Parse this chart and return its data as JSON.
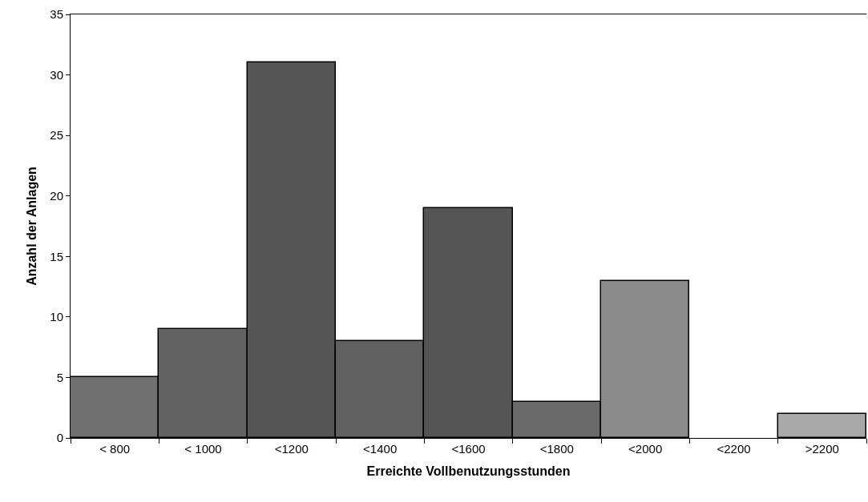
{
  "chart_data": {
    "type": "bar",
    "xlabel": "Erreichte Vollbenutzungsstunden",
    "ylabel": "Anzahl der Anlagen",
    "categories": [
      "< 800",
      "< 1000",
      "<1200",
      "<1400",
      "<1600",
      "<1800",
      "<2000",
      "<2200",
      ">2200"
    ],
    "values": [
      5,
      9,
      31,
      8,
      19,
      3,
      13,
      0,
      2
    ],
    "colors": [
      "#707070",
      "#626262",
      "#555555",
      "#606060",
      "#545454",
      "#6a6a6a",
      "#8a8a8a",
      null,
      "#a8a8a8"
    ],
    "ylim": [
      0,
      35
    ],
    "yticks": [
      0,
      5,
      10,
      15,
      20,
      25,
      30,
      35
    ]
  }
}
